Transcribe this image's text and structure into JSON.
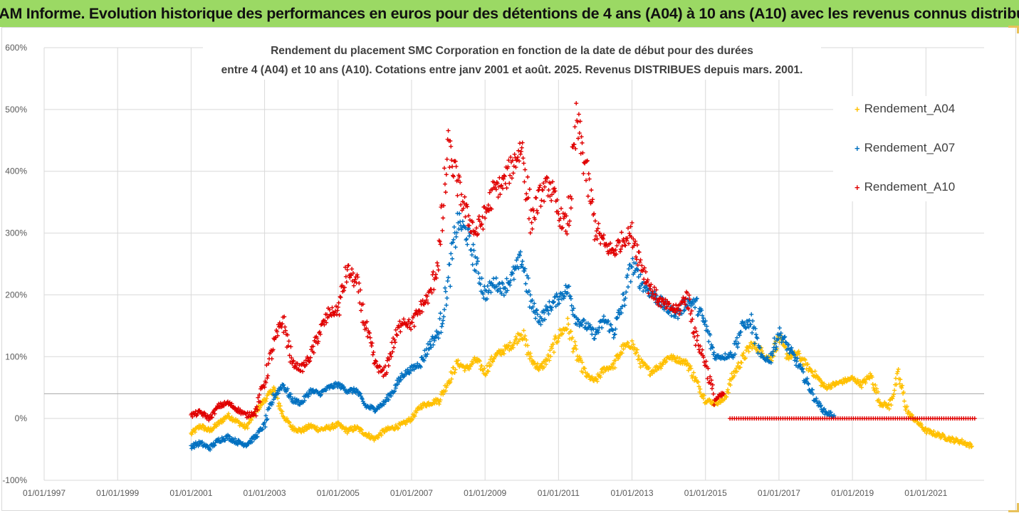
{
  "header": {
    "title": "ADAM Informe. Evolution historique des performances en euros pour des détentions de 4 ans (A04) à 10 ans (A10) avec les revenus connus distribués"
  },
  "colors": {
    "header_bg": "#9bd964",
    "A04": "#ffc000",
    "A07": "#0070c0",
    "A10": "#e00000",
    "grid": "#d9d9d9"
  },
  "chart_data": {
    "type": "scatter",
    "title_lines": [
      "Rendement du placement SMC Corporation en fonction de la date de début pour des durées",
      "entre 4 (A04) et 10 ans (A10). Cotations entre janv 2001 et août. 2025. Revenus DISTRIBUES depuis mars. 2001."
    ],
    "xlabel": "",
    "ylabel": "",
    "ylim": [
      -100,
      600
    ],
    "xlim": [
      "1997-01-01",
      "2022-08-01"
    ],
    "y_ticks": [
      "-100%",
      "0%",
      "100%",
      "200%",
      "300%",
      "400%",
      "500%",
      "600%"
    ],
    "x_ticks": [
      "01/01/1997",
      "01/01/1999",
      "01/01/2001",
      "01/01/2003",
      "01/01/2005",
      "01/01/2007",
      "01/01/2009",
      "01/01/2011",
      "01/01/2013",
      "01/01/2015",
      "01/01/2017",
      "01/01/2019",
      "01/01/2021"
    ],
    "grid": true,
    "legend_position": "right",
    "reference_line_y": 40,
    "series": [
      {
        "name": "Rendement_A04",
        "color": "#ffc000",
        "points": [
          [
            "2001-01",
            -25
          ],
          [
            "2001-04",
            -12
          ],
          [
            "2001-07",
            -20
          ],
          [
            "2001-10",
            -8
          ],
          [
            "2002-01",
            5
          ],
          [
            "2002-04",
            -5
          ],
          [
            "2002-07",
            -15
          ],
          [
            "2002-10",
            10
          ],
          [
            "2003-01",
            30
          ],
          [
            "2003-04",
            48
          ],
          [
            "2003-07",
            5
          ],
          [
            "2003-10",
            -15
          ],
          [
            "2004-01",
            -20
          ],
          [
            "2004-04",
            -12
          ],
          [
            "2004-07",
            -18
          ],
          [
            "2004-10",
            -15
          ],
          [
            "2005-01",
            -10
          ],
          [
            "2005-04",
            -20
          ],
          [
            "2005-07",
            -15
          ],
          [
            "2005-10",
            -25
          ],
          [
            "2006-01",
            -33
          ],
          [
            "2006-04",
            -20
          ],
          [
            "2006-07",
            -15
          ],
          [
            "2006-10",
            -10
          ],
          [
            "2007-01",
            0
          ],
          [
            "2007-04",
            20
          ],
          [
            "2007-07",
            25
          ],
          [
            "2007-10",
            30
          ],
          [
            "2008-01",
            60
          ],
          [
            "2008-04",
            90
          ],
          [
            "2008-07",
            80
          ],
          [
            "2008-10",
            95
          ],
          [
            "2009-01",
            75
          ],
          [
            "2009-04",
            100
          ],
          [
            "2009-07",
            110
          ],
          [
            "2009-10",
            120
          ],
          [
            "2010-01",
            140
          ],
          [
            "2010-04",
            95
          ],
          [
            "2010-07",
            80
          ],
          [
            "2010-10",
            100
          ],
          [
            "2011-01",
            135
          ],
          [
            "2011-04",
            150
          ],
          [
            "2011-07",
            100
          ],
          [
            "2011-10",
            70
          ],
          [
            "2012-01",
            60
          ],
          [
            "2012-04",
            80
          ],
          [
            "2012-07",
            85
          ],
          [
            "2012-10",
            115
          ],
          [
            "2013-01",
            120
          ],
          [
            "2013-04",
            90
          ],
          [
            "2013-07",
            75
          ],
          [
            "2013-10",
            85
          ],
          [
            "2014-01",
            100
          ],
          [
            "2014-04",
            95
          ],
          [
            "2014-07",
            90
          ],
          [
            "2014-10",
            60
          ],
          [
            "2015-01",
            30
          ],
          [
            "2015-04",
            25
          ],
          [
            "2015-07",
            30
          ],
          [
            "2015-10",
            70
          ],
          [
            "2016-01",
            95
          ],
          [
            "2016-04",
            120
          ],
          [
            "2016-07",
            110
          ],
          [
            "2016-10",
            95
          ],
          [
            "2017-01",
            130
          ],
          [
            "2017-04",
            100
          ],
          [
            "2017-07",
            105
          ],
          [
            "2017-10",
            85
          ],
          [
            "2018-01",
            70
          ],
          [
            "2018-04",
            50
          ],
          [
            "2018-07",
            55
          ],
          [
            "2018-10",
            60
          ],
          [
            "2019-01",
            65
          ],
          [
            "2019-04",
            55
          ],
          [
            "2019-07",
            70
          ],
          [
            "2019-10",
            25
          ],
          [
            "2020-01",
            20
          ],
          [
            "2020-04",
            70
          ],
          [
            "2020-07",
            10
          ],
          [
            "2020-10",
            -5
          ],
          [
            "2021-01",
            -20
          ],
          [
            "2021-04",
            -25
          ],
          [
            "2021-07",
            -30
          ],
          [
            "2021-10",
            -35
          ],
          [
            "2022-01",
            -38
          ],
          [
            "2022-04",
            -45
          ]
        ]
      },
      {
        "name": "Rendement_A07",
        "color": "#0070c0",
        "points": [
          [
            "2001-01",
            -45
          ],
          [
            "2001-04",
            -40
          ],
          [
            "2001-07",
            -48
          ],
          [
            "2001-10",
            -35
          ],
          [
            "2002-01",
            -30
          ],
          [
            "2002-04",
            -38
          ],
          [
            "2002-07",
            -42
          ],
          [
            "2002-10",
            -30
          ],
          [
            "2003-01",
            -10
          ],
          [
            "2003-04",
            35
          ],
          [
            "2003-07",
            55
          ],
          [
            "2003-10",
            30
          ],
          [
            "2004-01",
            25
          ],
          [
            "2004-04",
            45
          ],
          [
            "2004-07",
            40
          ],
          [
            "2004-10",
            50
          ],
          [
            "2005-01",
            55
          ],
          [
            "2005-04",
            45
          ],
          [
            "2005-07",
            45
          ],
          [
            "2005-10",
            20
          ],
          [
            "2006-01",
            15
          ],
          [
            "2006-04",
            25
          ],
          [
            "2006-07",
            45
          ],
          [
            "2006-10",
            70
          ],
          [
            "2007-01",
            80
          ],
          [
            "2007-04",
            90
          ],
          [
            "2007-07",
            120
          ],
          [
            "2007-10",
            140
          ],
          [
            "2008-01",
            220
          ],
          [
            "2008-04",
            320
          ],
          [
            "2008-07",
            300
          ],
          [
            "2008-10",
            250
          ],
          [
            "2009-01",
            200
          ],
          [
            "2009-04",
            220
          ],
          [
            "2009-07",
            210
          ],
          [
            "2009-10",
            230
          ],
          [
            "2010-01",
            260
          ],
          [
            "2010-04",
            185
          ],
          [
            "2010-07",
            160
          ],
          [
            "2010-10",
            180
          ],
          [
            "2011-01",
            195
          ],
          [
            "2011-04",
            210
          ],
          [
            "2011-07",
            160
          ],
          [
            "2011-10",
            150
          ],
          [
            "2012-01",
            135
          ],
          [
            "2012-04",
            160
          ],
          [
            "2012-07",
            140
          ],
          [
            "2012-10",
            185
          ],
          [
            "2013-01",
            250
          ],
          [
            "2013-04",
            220
          ],
          [
            "2013-07",
            205
          ],
          [
            "2013-10",
            190
          ],
          [
            "2014-01",
            175
          ],
          [
            "2014-04",
            170
          ],
          [
            "2014-07",
            190
          ],
          [
            "2014-10",
            185
          ],
          [
            "2015-01",
            150
          ],
          [
            "2015-04",
            100
          ],
          [
            "2015-07",
            100
          ],
          [
            "2015-10",
            105
          ],
          [
            "2016-01",
            150
          ],
          [
            "2016-04",
            155
          ],
          [
            "2016-07",
            100
          ],
          [
            "2016-10",
            95
          ],
          [
            "2017-01",
            140
          ],
          [
            "2017-04",
            115
          ],
          [
            "2017-07",
            90
          ],
          [
            "2017-10",
            60
          ],
          [
            "2018-01",
            30
          ],
          [
            "2018-04",
            10
          ],
          [
            "2018-07",
            5
          ]
        ]
      },
      {
        "name": "Rendement_A10",
        "color": "#e00000",
        "points": [
          [
            "2001-01",
            5
          ],
          [
            "2001-04",
            10
          ],
          [
            "2001-07",
            0
          ],
          [
            "2001-10",
            20
          ],
          [
            "2002-01",
            25
          ],
          [
            "2002-04",
            15
          ],
          [
            "2002-07",
            5
          ],
          [
            "2002-10",
            10
          ],
          [
            "2003-01",
            60
          ],
          [
            "2003-04",
            120
          ],
          [
            "2003-07",
            160
          ],
          [
            "2003-10",
            90
          ],
          [
            "2004-01",
            80
          ],
          [
            "2004-04",
            100
          ],
          [
            "2004-07",
            140
          ],
          [
            "2004-10",
            170
          ],
          [
            "2005-01",
            175
          ],
          [
            "2005-04",
            240
          ],
          [
            "2005-07",
            220
          ],
          [
            "2005-10",
            150
          ],
          [
            "2006-01",
            90
          ],
          [
            "2006-04",
            70
          ],
          [
            "2006-07",
            120
          ],
          [
            "2006-10",
            160
          ],
          [
            "2007-01",
            150
          ],
          [
            "2007-04",
            180
          ],
          [
            "2007-07",
            200
          ],
          [
            "2007-10",
            260
          ],
          [
            "2008-01",
            440
          ],
          [
            "2008-04",
            380
          ],
          [
            "2008-07",
            330
          ],
          [
            "2008-10",
            300
          ],
          [
            "2009-01",
            330
          ],
          [
            "2009-04",
            370
          ],
          [
            "2009-07",
            380
          ],
          [
            "2009-10",
            410
          ],
          [
            "2010-01",
            440
          ],
          [
            "2010-04",
            320
          ],
          [
            "2010-07",
            360
          ],
          [
            "2010-10",
            380
          ],
          [
            "2011-01",
            330
          ],
          [
            "2011-04",
            310
          ],
          [
            "2011-07",
            480
          ],
          [
            "2011-10",
            400
          ],
          [
            "2012-01",
            310
          ],
          [
            "2012-04",
            280
          ],
          [
            "2012-07",
            270
          ],
          [
            "2012-10",
            290
          ],
          [
            "2013-01",
            300
          ],
          [
            "2013-04",
            250
          ],
          [
            "2013-07",
            210
          ],
          [
            "2013-10",
            190
          ],
          [
            "2014-01",
            180
          ],
          [
            "2014-04",
            175
          ],
          [
            "2014-07",
            200
          ],
          [
            "2014-10",
            130
          ],
          [
            "2015-01",
            90
          ],
          [
            "2015-04",
            30
          ],
          [
            "2015-07",
            40
          ]
        ]
      },
      {
        "name": "Rendement_A10 (flat)",
        "color": "#e00000",
        "range": [
          "2015-09",
          "2022-05"
        ],
        "value": 0
      }
    ]
  },
  "legend": {
    "items": [
      {
        "label": "Rendement_A04",
        "marker": "+"
      },
      {
        "label": "Rendement_A07",
        "marker": "+"
      },
      {
        "label": "Rendement_A10",
        "marker": "+"
      }
    ]
  }
}
